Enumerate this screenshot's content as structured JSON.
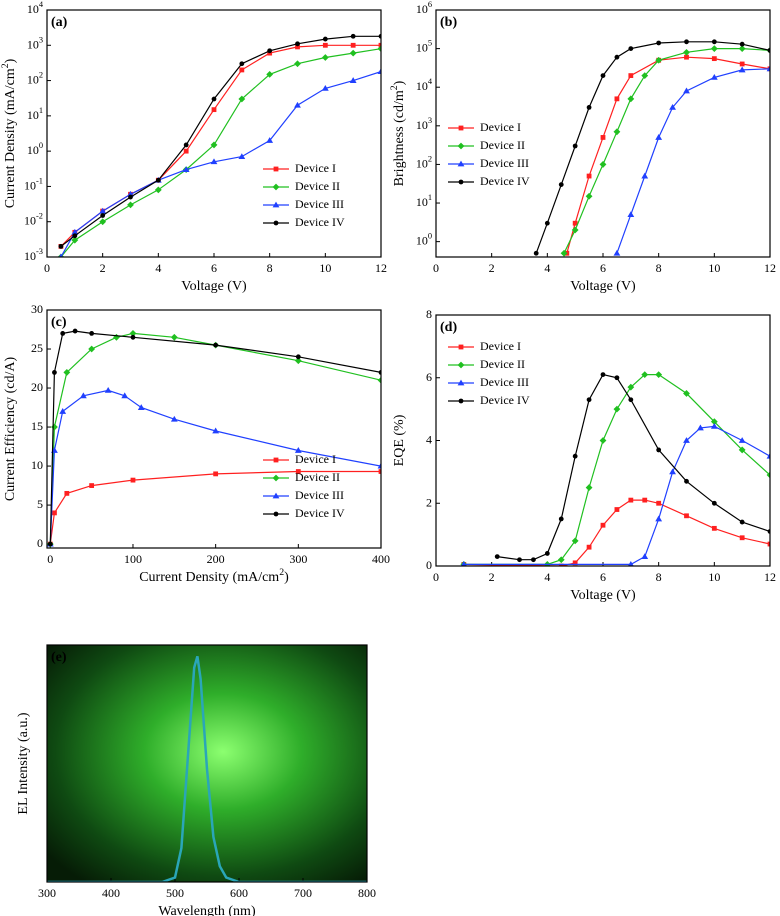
{
  "chart_data": [
    {
      "type": "line",
      "label": "(a)",
      "x_label": "Voltage (V)",
      "y_label": "Current Density (mA/cm^2)",
      "log_y": true,
      "legend_position": "lower right",
      "xlim": [
        0,
        12
      ],
      "xticks": [
        0,
        2,
        4,
        6,
        8,
        10,
        12
      ],
      "ylim": [
        0.001,
        10000
      ],
      "yticks": [
        {
          "value": 0.001,
          "label": "10^-3"
        },
        {
          "value": 0.01,
          "label": "10^-2"
        },
        {
          "value": 0.1,
          "label": "10^-1"
        },
        {
          "value": 1,
          "label": "10^0"
        },
        {
          "value": 10,
          "label": "10^1"
        },
        {
          "value": 100,
          "label": "10^2"
        },
        {
          "value": 1000,
          "label": "10^3"
        },
        {
          "value": 10000,
          "label": "10^4"
        }
      ],
      "series": [
        {
          "name": "Device I",
          "color": "#ff2020",
          "marker": "square",
          "x": [
            0.5,
            1,
            2,
            3,
            4,
            5,
            6,
            7,
            8,
            9,
            10,
            11,
            12
          ],
          "values": [
            0.002,
            0.005,
            0.02,
            0.06,
            0.15,
            1.0,
            15,
            200,
            600,
            900,
            1000,
            1000,
            1000
          ]
        },
        {
          "name": "Device II",
          "color": "#20c020",
          "marker": "diamond",
          "x": [
            0.5,
            1,
            2,
            3,
            4,
            5,
            6,
            7,
            8,
            9,
            10,
            11,
            12
          ],
          "values": [
            0.001,
            0.003,
            0.01,
            0.03,
            0.08,
            0.3,
            1.5,
            30,
            150,
            300,
            450,
            600,
            800
          ]
        },
        {
          "name": "Device III",
          "color": "#2040ff",
          "marker": "triangle",
          "x": [
            0.5,
            1,
            2,
            3,
            4,
            5,
            6,
            7,
            8,
            9,
            10,
            11,
            12
          ],
          "values": [
            0.001,
            0.005,
            0.02,
            0.06,
            0.15,
            0.3,
            0.5,
            0.7,
            2,
            20,
            60,
            100,
            180
          ]
        },
        {
          "name": "Device IV",
          "color": "#000000",
          "marker": "circle",
          "x": [
            0.5,
            1,
            2,
            3,
            4,
            5,
            6,
            7,
            8,
            9,
            10,
            11,
            12
          ],
          "values": [
            0.002,
            0.004,
            0.015,
            0.05,
            0.15,
            1.5,
            30,
            300,
            700,
            1100,
            1500,
            1800,
            1800
          ]
        }
      ]
    },
    {
      "type": "line",
      "label": "(b)",
      "x_label": "Voltage (V)",
      "y_label": "Brightness (cd/m^2)",
      "log_y": true,
      "legend_position": "center left",
      "xlim": [
        0,
        12
      ],
      "xticks": [
        0,
        2,
        4,
        6,
        8,
        10,
        12
      ],
      "ylim": [
        0.4,
        1000000
      ],
      "yticks": [
        {
          "value": 1,
          "label": "10^0"
        },
        {
          "value": 10,
          "label": "10^1"
        },
        {
          "value": 100,
          "label": "10^2"
        },
        {
          "value": 1000,
          "label": "10^3"
        },
        {
          "value": 10000,
          "label": "10^4"
        },
        {
          "value": 100000,
          "label": "10^5"
        },
        {
          "value": 1000000,
          "label": "10^6"
        }
      ],
      "series": [
        {
          "name": "Device I",
          "color": "#ff2020",
          "marker": "square",
          "x": [
            4.7,
            5,
            5.5,
            6,
            6.5,
            7,
            8,
            9,
            10,
            11,
            12
          ],
          "values": [
            0.5,
            3,
            50,
            500,
            5000,
            20000,
            50000,
            60000,
            55000,
            40000,
            30000
          ]
        },
        {
          "name": "Device II",
          "color": "#20c020",
          "marker": "diamond",
          "x": [
            4.6,
            5,
            5.5,
            6,
            6.5,
            7,
            7.5,
            8,
            9,
            10,
            11,
            12
          ],
          "values": [
            0.5,
            2,
            15,
            100,
            700,
            5000,
            20000,
            50000,
            80000,
            100000,
            100000,
            90000
          ]
        },
        {
          "name": "Device III",
          "color": "#2040ff",
          "marker": "triangle",
          "x": [
            6.5,
            7,
            7.5,
            8,
            8.5,
            9,
            10,
            11,
            12
          ],
          "values": [
            0.5,
            5,
            50,
            500,
            3000,
            8000,
            18000,
            28000,
            30000
          ]
        },
        {
          "name": "Device IV",
          "color": "#000000",
          "marker": "circle",
          "x": [
            3.6,
            4,
            4.5,
            5,
            5.5,
            6,
            6.5,
            7,
            8,
            9,
            10,
            11,
            12
          ],
          "values": [
            0.5,
            3,
            30,
            300,
            3000,
            20000,
            60000,
            100000,
            140000,
            150000,
            150000,
            130000,
            90000
          ]
        }
      ]
    },
    {
      "type": "line",
      "label": "(c)",
      "x_label": "Current Density (mA/cm^2)",
      "y_label": "Current Efficiency (cd/A)",
      "log_y": false,
      "legend_position": "lower right",
      "xlim": [
        -4,
        400
      ],
      "xticks": [
        0,
        100,
        200,
        300,
        400
      ],
      "ylim": [
        -0.5,
        30
      ],
      "yticks": [
        0,
        5,
        10,
        15,
        20,
        25,
        30
      ],
      "series": [
        {
          "name": "Device I",
          "color": "#ff2020",
          "marker": "square",
          "x": [
            0,
            5,
            20,
            50,
            100,
            200,
            300,
            400
          ],
          "values": [
            0,
            4,
            6.5,
            7.5,
            8.2,
            9,
            9.3,
            9.3
          ]
        },
        {
          "name": "Device II",
          "color": "#20c020",
          "marker": "diamond",
          "x": [
            0,
            5,
            20,
            50,
            80,
            100,
            150,
            200,
            300,
            400
          ],
          "values": [
            0,
            15,
            22,
            25,
            26.5,
            27,
            26.5,
            25.5,
            23.5,
            21
          ]
        },
        {
          "name": "Device III",
          "color": "#2040ff",
          "marker": "triangle",
          "x": [
            0,
            5,
            15,
            40,
            70,
            90,
            110,
            150,
            200,
            300,
            400
          ],
          "values": [
            0,
            12,
            17,
            19,
            19.7,
            19,
            17.5,
            16,
            14.5,
            12,
            10
          ]
        },
        {
          "name": "Device IV",
          "color": "#000000",
          "marker": "circle",
          "x": [
            0,
            5,
            15,
            30,
            50,
            100,
            200,
            300,
            400
          ],
          "values": [
            0,
            22,
            27,
            27.3,
            27,
            26.5,
            25.5,
            24,
            22
          ]
        }
      ]
    },
    {
      "type": "line",
      "label": "(d)",
      "x_label": "Voltage (V)",
      "y_label": "EQE (%)",
      "log_y": false,
      "legend_position": "upper left",
      "xlim": [
        0,
        12
      ],
      "xticks": [
        0,
        2,
        4,
        6,
        8,
        10,
        12
      ],
      "ylim": [
        0,
        8
      ],
      "yticks": [
        0,
        2,
        4,
        6,
        8
      ],
      "series": [
        {
          "name": "Device I",
          "color": "#ff2020",
          "marker": "square",
          "x": [
            1,
            4.5,
            5,
            5.5,
            6,
            6.5,
            7,
            7.5,
            8,
            9,
            10,
            11,
            12
          ],
          "values": [
            0.05,
            0,
            0.1,
            0.6,
            1.3,
            1.8,
            2.1,
            2.1,
            2,
            1.6,
            1.2,
            0.9,
            0.7
          ]
        },
        {
          "name": "Device II",
          "color": "#20c020",
          "marker": "diamond",
          "x": [
            1,
            4,
            4.5,
            5,
            5.5,
            6,
            6.5,
            7,
            7.5,
            8,
            9,
            10,
            11,
            12
          ],
          "values": [
            0.05,
            0.05,
            0.2,
            0.8,
            2.5,
            4,
            5,
            5.7,
            6.1,
            6.1,
            5.5,
            4.6,
            3.7,
            2.9
          ]
        },
        {
          "name": "Device III",
          "color": "#2040ff",
          "marker": "triangle",
          "x": [
            1,
            7,
            7.5,
            8,
            8.5,
            9,
            9.5,
            10,
            11,
            12
          ],
          "values": [
            0.05,
            0.05,
            0.3,
            1.5,
            3,
            4,
            4.4,
            4.45,
            4,
            3.5
          ]
        },
        {
          "name": "Device IV",
          "color": "#000000",
          "marker": "circle",
          "x": [
            2.2,
            3,
            3.5,
            4,
            4.5,
            5,
            5.5,
            6,
            6.5,
            7,
            8,
            9,
            10,
            11,
            12
          ],
          "values": [
            0.3,
            0.2,
            0.2,
            0.4,
            1.5,
            3.5,
            5.3,
            6.1,
            6,
            5.3,
            3.7,
            2.7,
            2,
            1.4,
            1.1
          ]
        }
      ]
    },
    {
      "type": "line",
      "label": "(e)",
      "x_label": "Wavelength (nm)",
      "y_label": "EL Intensity (a.u.)",
      "log_y": false,
      "xlim": [
        300,
        800
      ],
      "xticks": [
        300,
        400,
        500,
        600,
        700,
        800
      ],
      "ylim": [
        0,
        1.05
      ],
      "series": [
        {
          "color": "#2aa6b8",
          "x": [
            300,
            480,
            500,
            510,
            520,
            530,
            535,
            540,
            550,
            560,
            570,
            580,
            600,
            800
          ],
          "values": [
            0,
            0,
            0.02,
            0.15,
            0.55,
            0.95,
            1,
            0.9,
            0.5,
            0.2,
            0.07,
            0.02,
            0,
            0
          ]
        }
      ]
    }
  ]
}
